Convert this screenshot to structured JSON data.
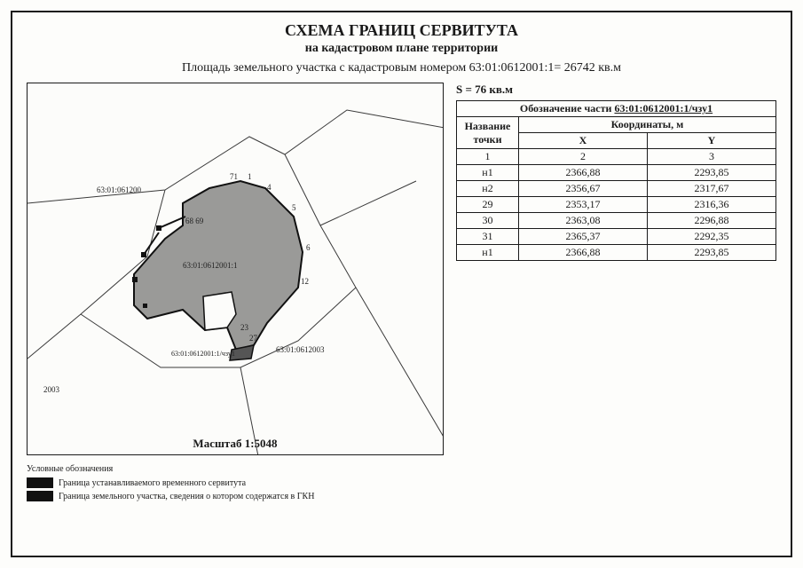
{
  "title": "СХЕМА ГРАНИЦ СЕРВИТУТА",
  "subtitle": "на кадастровом плане территории",
  "area_line": "Площадь земельного участка с кадастровым номером 63:01:0612001:1= 26742 кв.м",
  "s_line": "S = 76 кв.м",
  "designation_label": "Обозначение части",
  "designation_value": "63:01:0612001:1/чзу1",
  "table": {
    "col_point": "Название точки",
    "col_coords": "Координаты, м",
    "col_x": "X",
    "col_y": "Y",
    "row_nums": {
      "c1": "1",
      "c2": "2",
      "c3": "3"
    },
    "rows": [
      {
        "p": "н1",
        "x": "2366,88",
        "y": "2293,85"
      },
      {
        "p": "н2",
        "x": "2356,67",
        "y": "2317,67"
      },
      {
        "p": "29",
        "x": "2353,17",
        "y": "2316,36"
      },
      {
        "p": "30",
        "x": "2363,08",
        "y": "2296,88"
      },
      {
        "p": "31",
        "x": "2365,37",
        "y": "2292,35"
      },
      {
        "p": "н1",
        "x": "2366,88",
        "y": "2293,85"
      }
    ]
  },
  "map": {
    "scale_label": "Масштаб 1:5048",
    "labels": {
      "kad_top": "63:01:061200",
      "kad_center": "63:01:0612001:1",
      "kad_right": "63:01:0612003",
      "kad_chzu": "63:01:0612001:1/чзу1",
      "left_num": "2003",
      "pt71": "71",
      "pt1": "1",
      "pt4": "4",
      "pt5": "5",
      "pt6": "6",
      "pt12": "12",
      "pt23": "23",
      "pt27": "27",
      "pt6869": "68 69"
    },
    "colors": {
      "parcel_lines": "#3a3a3a",
      "parcel_fill": "#9a9a98",
      "parcel_stroke": "#111",
      "servitut_stroke": "#111"
    }
  },
  "legend": {
    "title": "Условные обозначения",
    "row1": "Граница устанавливаемого временного сервитута",
    "row2": "Граница земельного участка, сведения о котором содержатся в ГКН"
  }
}
